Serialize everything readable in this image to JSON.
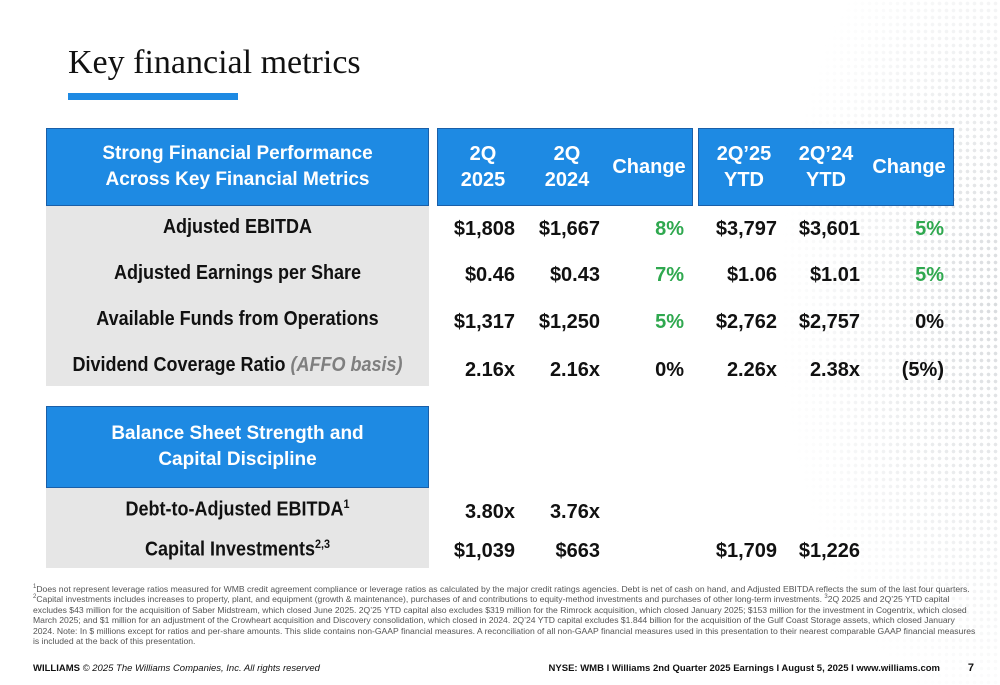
{
  "title": "Key financial metrics",
  "performance": {
    "header_line1": "Strong Financial Performance",
    "header_line2": "Across Key Financial Metrics",
    "columns": [
      "2Q\n2025",
      "2Q\n2024",
      "Change",
      "2Q’25\nYTD",
      "2Q’24\nYTD",
      "Change"
    ],
    "rows": [
      {
        "label": "Adjusted EBITDA",
        "note": "",
        "values": [
          "$1,808",
          "$1,667",
          "8%",
          "$3,797",
          "$3,601",
          "5%"
        ]
      },
      {
        "label": "Adjusted Earnings per Share",
        "note": "",
        "values": [
          "$0.46",
          "$0.43",
          "7%",
          "$1.06",
          "$1.01",
          "5%"
        ]
      },
      {
        "label": "Available Funds from Operations",
        "note": "",
        "values": [
          "$1,317",
          "$1,250",
          "5%",
          "$2,762",
          "$2,757",
          "0%"
        ]
      },
      {
        "label": "Dividend Coverage Ratio",
        "note": "(AFFO basis)",
        "values": [
          "2.16x",
          "2.16x",
          "0%",
          "2.26x",
          "2.38x",
          "(5%)"
        ]
      }
    ]
  },
  "balance": {
    "header_line1": "Balance Sheet Strength and",
    "header_line2": "Capital Discipline",
    "rows": [
      {
        "label": "Debt-to-Adjusted EBITDA",
        "sup": "1",
        "values": [
          "3.80x",
          "3.76x",
          "",
          "",
          "",
          ""
        ]
      },
      {
        "label": "Capital Investments",
        "sup": "2,3",
        "values": [
          "$1,039",
          "$663",
          "",
          "$1,709",
          "$1,226",
          ""
        ]
      }
    ]
  },
  "colors": {
    "accent_blue": "#1e8ae3",
    "positive_green": "#2fa84f",
    "row_grey": "#e6e6e6"
  },
  "footnote": {
    "s1": "1",
    "t1": "Does not represent leverage ratios measured for WMB credit agreement compliance or leverage ratios as calculated by the major credit ratings agencies. Debt is net of cash on hand, and Adjusted EBITDA reflects the sum of the last four quarters. ",
    "s2": "2",
    "t2": "Capital investments includes increases to property, plant, and equipment (growth & maintenance), purchases of and contributions to equity-method investments and purchases of other long-term investments. ",
    "s3": "3",
    "t3": "2Q 2025 and 2Q’25 YTD capital excludes $43 million for the acquisition of Saber Midstream, which closed June 2025. 2Q’25 YTD capital also excludes $319 million for the Rimrock acquisition, which closed January 2025; $153 million for the investment in Cogentrix, which closed March 2025; and $1 million for an adjustment of the Crowheart acquisition and Discovery consolidation, which closed in 2024. 2Q’24 YTD capital excludes $1.844 billion for the acquisition of the Gulf Coast Storage assets, which closed January 2024. Note: In $ millions except for ratios and per-share amounts. This slide contains non-GAAP financial measures. A reconciliation of all non-GAAP financial measures used in this presentation to their nearest comparable GAAP financial measures is included at the back of this presentation."
  },
  "footer": {
    "brand": "WILLIAMS",
    "copyright": " © 2025 The Williams Companies, Inc. All rights reserved",
    "right": "NYSE: WMB  I  Williams 2nd Quarter 2025 Earnings I  August 5, 2025  I  www.williams.com",
    "page": "7"
  }
}
